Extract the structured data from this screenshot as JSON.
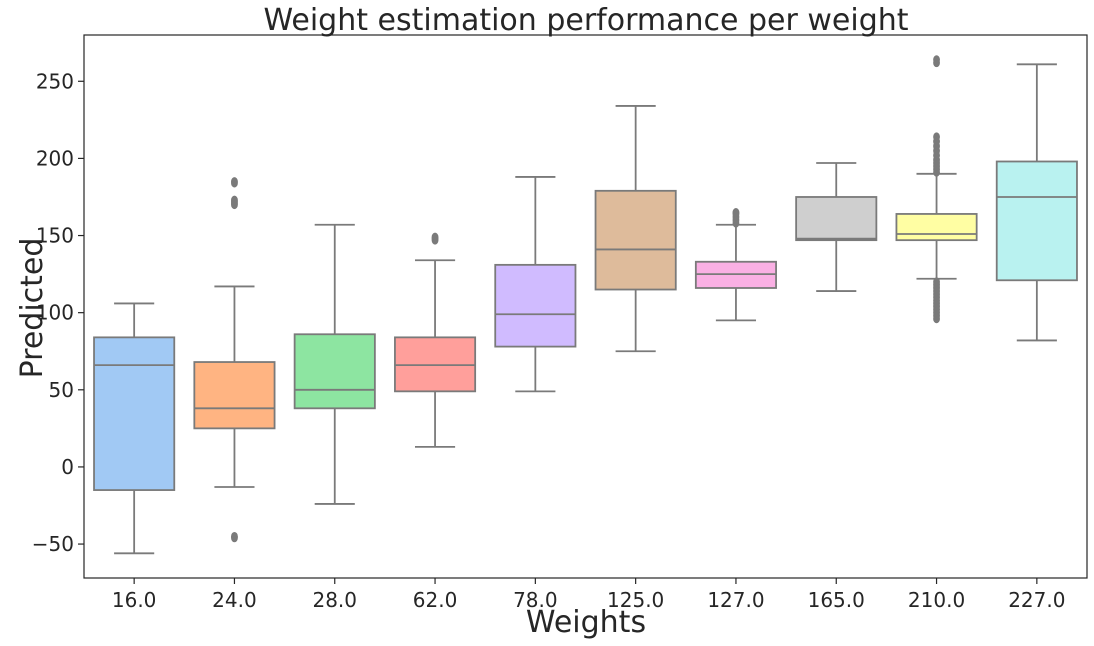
{
  "chart_data": {
    "type": "box",
    "title": "Weight estimation performance per weight",
    "xlabel": "Weights",
    "ylabel": "Predicted",
    "ylim": [
      -72,
      280
    ],
    "yticks": [
      -50,
      0,
      50,
      100,
      150,
      200,
      250
    ],
    "grid": false,
    "legend": null,
    "categories": [
      "16.0",
      "24.0",
      "28.0",
      "62.0",
      "78.0",
      "125.0",
      "127.0",
      "165.0",
      "210.0",
      "227.0"
    ],
    "colors": [
      "#a1c9f4",
      "#ffb482",
      "#8de5a1",
      "#ff9f9b",
      "#d0bbff",
      "#debb9b",
      "#fab0e4",
      "#cfcfcf",
      "#fffea3",
      "#b9f2f0"
    ],
    "boxes": [
      {
        "category": "16.0",
        "whisker_low": -56,
        "q1": -15,
        "median": 66,
        "q3": 84,
        "whisker_high": 106,
        "outliers": []
      },
      {
        "category": "24.0",
        "whisker_low": -13,
        "q1": 25,
        "median": 38,
        "q3": 68,
        "whisker_high": 117,
        "outliers": [
          -46,
          -45,
          170,
          171,
          172,
          173,
          184,
          185
        ]
      },
      {
        "category": "28.0",
        "whisker_low": -24,
        "q1": 38,
        "median": 50,
        "q3": 86,
        "whisker_high": 157,
        "outliers": []
      },
      {
        "category": "62.0",
        "whisker_low": 13,
        "q1": 49,
        "median": 66,
        "q3": 84,
        "whisker_high": 134,
        "outliers": [
          147,
          148,
          149
        ]
      },
      {
        "category": "78.0",
        "whisker_low": 49,
        "q1": 78,
        "median": 99,
        "q3": 131,
        "whisker_high": 188,
        "outliers": []
      },
      {
        "category": "125.0",
        "whisker_low": 75,
        "q1": 115,
        "median": 141,
        "q3": 179,
        "whisker_high": 234,
        "outliers": []
      },
      {
        "category": "127.0",
        "whisker_low": 95,
        "q1": 116,
        "median": 125,
        "q3": 133,
        "whisker_high": 157,
        "outliers": [
          158,
          160,
          162,
          164,
          165
        ]
      },
      {
        "category": "165.0",
        "whisker_low": 114,
        "q1": 147,
        "median": 148,
        "q3": 175,
        "whisker_high": 197,
        "outliers": []
      },
      {
        "category": "210.0",
        "whisker_low": 122,
        "q1": 147,
        "median": 151,
        "q3": 164,
        "whisker_high": 190,
        "outliers": [
          96,
          98,
          100,
          102,
          104,
          106,
          108,
          110,
          112,
          114,
          116,
          118,
          120,
          191,
          193,
          195,
          197,
          199,
          202,
          205,
          208,
          211,
          214,
          262,
          264
        ]
      },
      {
        "category": "227.0",
        "whisker_low": 82,
        "q1": 121,
        "median": 175,
        "q3": 198,
        "whisker_high": 261,
        "outliers": []
      }
    ]
  }
}
